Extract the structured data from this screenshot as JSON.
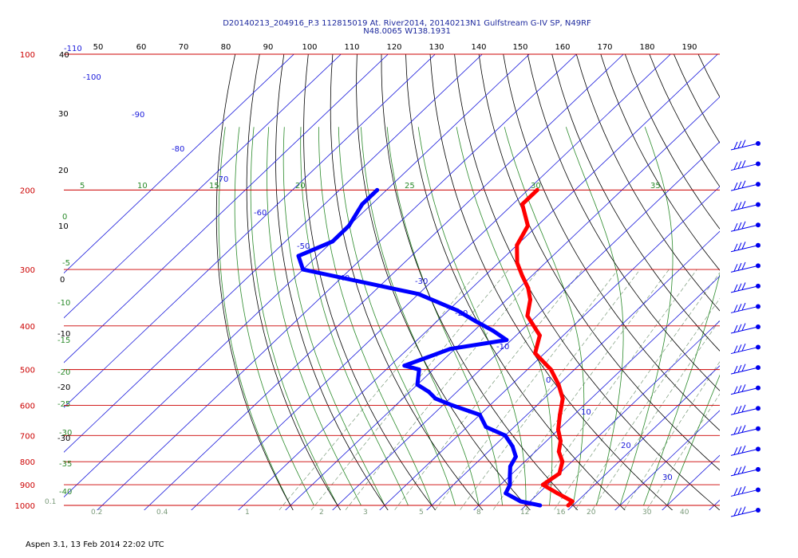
{
  "header": {
    "title_line1": "D20140213_204916_P.3 112815019 At. River2014, 20140213N1 Gulfstream G-IV SP, N49RF",
    "title_line2": "N48.0065 W138.1931"
  },
  "footer": {
    "text": "Aspen 3.1, 13 Feb 2014  22:02 UTC"
  },
  "chart_data": {
    "type": "line",
    "title": "D20140213_204916_P.3 112815019 At. River2014, 20140213N1 Gulfstream G-IV SP, N49RF N48.0065 W138.1931",
    "subtype": "skew-T log-P",
    "x_axis_top_ticks": [
      "50",
      "60",
      "70",
      "80",
      "90",
      "100",
      "110",
      "120",
      "130",
      "140",
      "150",
      "160",
      "170",
      "180",
      "190"
    ],
    "pressure_levels": [
      100,
      200,
      300,
      400,
      500,
      600,
      700,
      800,
      900,
      1000
    ],
    "pressure_labels": [
      "100",
      "200",
      "300",
      "400",
      "500",
      "600",
      "700",
      "800",
      "900",
      "1000"
    ],
    "colors": {
      "temperature": "#ff0000",
      "dewpoint": "#0000ff",
      "isobars": "#cc0000",
      "isotherms": "#1a1adb",
      "dry_adiabats": "#000000",
      "moist_adiabats": "#2a8a2a",
      "mixing_ratio": "#7a9a7a"
    },
    "isotherm_labels": [
      "-110",
      "-100",
      "-90",
      "-80",
      "-70",
      "-60",
      "-50",
      "-40",
      "-30",
      "-20",
      "-10",
      "0",
      "10",
      "20",
      "30"
    ],
    "dry_adiabat_labels": [
      "40",
      "30",
      "20",
      "10",
      "0",
      "-10",
      "-20",
      "-30"
    ],
    "moist_adiabat_labels": [
      "5",
      "10",
      "15",
      "20",
      "25",
      "30",
      "35"
    ],
    "moist_adiabat_left_labels": [
      "0",
      "-5",
      "-10",
      "-15",
      "-20",
      "-25",
      "-30",
      "-35",
      "-40"
    ],
    "mixing_ratio_labels": [
      "0.1",
      "0.2",
      "0.4",
      "1",
      "2",
      "3",
      "5",
      "8",
      "12",
      "16",
      "20",
      "30",
      "40"
    ],
    "series": [
      {
        "name": "",
        "pressure": [
          200,
          215,
          240,
          265,
          290,
          310,
          330,
          350,
          380,
          420,
          460,
          500,
          540,
          580,
          630,
          680,
          720,
          760,
          800,
          850,
          900,
          940,
          980,
          1000
        ],
        "values": [
          -58,
          -58,
          -52,
          -50,
          -46,
          -42,
          -38,
          -35,
          -32,
          -25,
          -22,
          -15,
          -10,
          -6,
          -3,
          0,
          3,
          5,
          8,
          10,
          9,
          14,
          19,
          19
        ]
      },
      {
        "name": "",
        "pressure": [
          200,
          215,
          240,
          260,
          280,
          300,
          340,
          370,
          390,
          410,
          430,
          450,
          470,
          490,
          500,
          540,
          560,
          580,
          600,
          630,
          670,
          700,
          740,
          780,
          820,
          860,
          900,
          940,
          980,
          1000
        ],
        "values": [
          -92,
          -92,
          -90,
          -90,
          -94,
          -90,
          -60,
          -48,
          -42,
          -36,
          -31,
          -41,
          -44,
          -47,
          -43,
          -40,
          -36,
          -33,
          -28,
          -20,
          -16,
          -10,
          -6,
          -3,
          -2,
          0,
          2,
          3,
          8,
          13
        ]
      }
    ],
    "wind_barbs_count": 19,
    "grid": true,
    "legend": "none"
  }
}
